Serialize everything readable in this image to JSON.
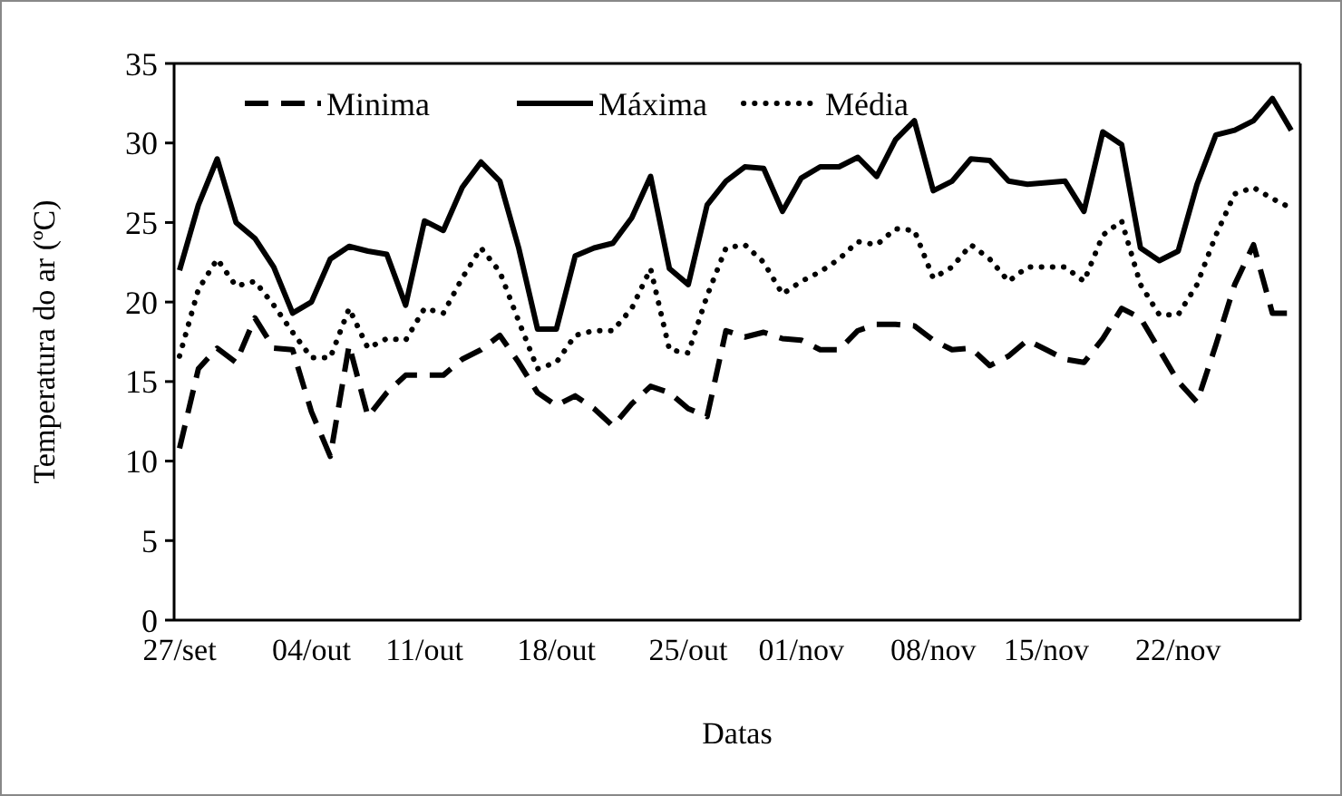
{
  "chart_data": {
    "type": "line",
    "xlabel": "Datas",
    "ylabel": "Temperatura do ar (ºC)",
    "categories": [
      "27/set",
      null,
      null,
      null,
      null,
      null,
      null,
      "04/out",
      null,
      null,
      null,
      null,
      null,
      "11/out",
      null,
      null,
      null,
      null,
      null,
      null,
      "18/out",
      null,
      null,
      null,
      null,
      null,
      null,
      "25/out",
      null,
      null,
      null,
      null,
      null,
      "01/nov",
      null,
      null,
      null,
      null,
      null,
      null,
      "08/nov",
      null,
      null,
      null,
      null,
      null,
      "15/nov",
      null,
      null,
      null,
      null,
      null,
      null,
      "22/nov",
      null,
      null,
      null,
      null,
      null,
      null
    ],
    "ylim": [
      0,
      35
    ],
    "yticks": [
      0,
      5,
      10,
      15,
      20,
      25,
      30,
      35
    ],
    "legend": "top",
    "grid": false,
    "series": [
      {
        "name": "Minima",
        "color": "#000000",
        "line_style": "dashed",
        "values": [
          10.8,
          15.8,
          17.1,
          16.2,
          19.0,
          17.1,
          17.0,
          13.1,
          10.3,
          17.3,
          12.8,
          14.3,
          15.4,
          15.4,
          15.4,
          16.4,
          17.0,
          17.9,
          16.2,
          14.3,
          13.5,
          14.1,
          13.3,
          12.2,
          13.6,
          14.7,
          14.3,
          13.3,
          12.8,
          18.2,
          17.8,
          18.1,
          17.7,
          17.6,
          17.0,
          17.0,
          18.2,
          18.6,
          18.6,
          18.5,
          17.6,
          17.0,
          17.1,
          16.0,
          16.6,
          17.6,
          17.0,
          16.4,
          16.2,
          17.7,
          19.6,
          19.0,
          17.0,
          15.0,
          13.7,
          17.3,
          21.1,
          23.6,
          19.3,
          19.3
        ]
      },
      {
        "name": "Máxima",
        "color": "#000000",
        "line_style": "solid",
        "values": [
          22.0,
          26.1,
          29.0,
          25.0,
          24.0,
          22.2,
          19.3,
          20.0,
          22.7,
          23.5,
          23.2,
          23.0,
          19.8,
          25.1,
          24.5,
          27.2,
          28.8,
          27.6,
          23.4,
          18.3,
          18.3,
          22.9,
          23.4,
          23.7,
          25.3,
          27.9,
          22.1,
          21.1,
          26.1,
          27.6,
          28.5,
          28.4,
          25.7,
          27.8,
          28.5,
          28.5,
          29.1,
          27.9,
          30.2,
          31.4,
          27.0,
          27.6,
          29.0,
          28.9,
          27.6,
          27.4,
          27.5,
          27.6,
          25.7,
          30.7,
          29.9,
          23.4,
          22.6,
          23.2,
          27.4,
          30.5,
          30.8,
          31.4,
          32.8,
          30.8
        ]
      },
      {
        "name": "Média",
        "color": "#000000",
        "line_style": "dotted",
        "values": [
          16.6,
          20.8,
          22.7,
          21.0,
          21.3,
          19.8,
          18.1,
          16.5,
          16.5,
          19.6,
          17.1,
          17.7,
          17.6,
          19.6,
          19.3,
          21.5,
          23.4,
          21.9,
          18.8,
          15.8,
          16.2,
          17.9,
          18.2,
          18.2,
          19.6,
          22.1,
          17.0,
          16.8,
          20.4,
          23.4,
          23.6,
          22.5,
          20.5,
          21.3,
          21.9,
          22.7,
          23.8,
          23.6,
          24.6,
          24.5,
          21.5,
          22.2,
          23.6,
          22.7,
          21.3,
          22.2,
          22.2,
          22.2,
          21.3,
          24.2,
          25.1,
          21.1,
          19.2,
          19.2,
          21.1,
          24.2,
          26.8,
          27.2,
          26.5,
          25.9
        ]
      }
    ]
  }
}
